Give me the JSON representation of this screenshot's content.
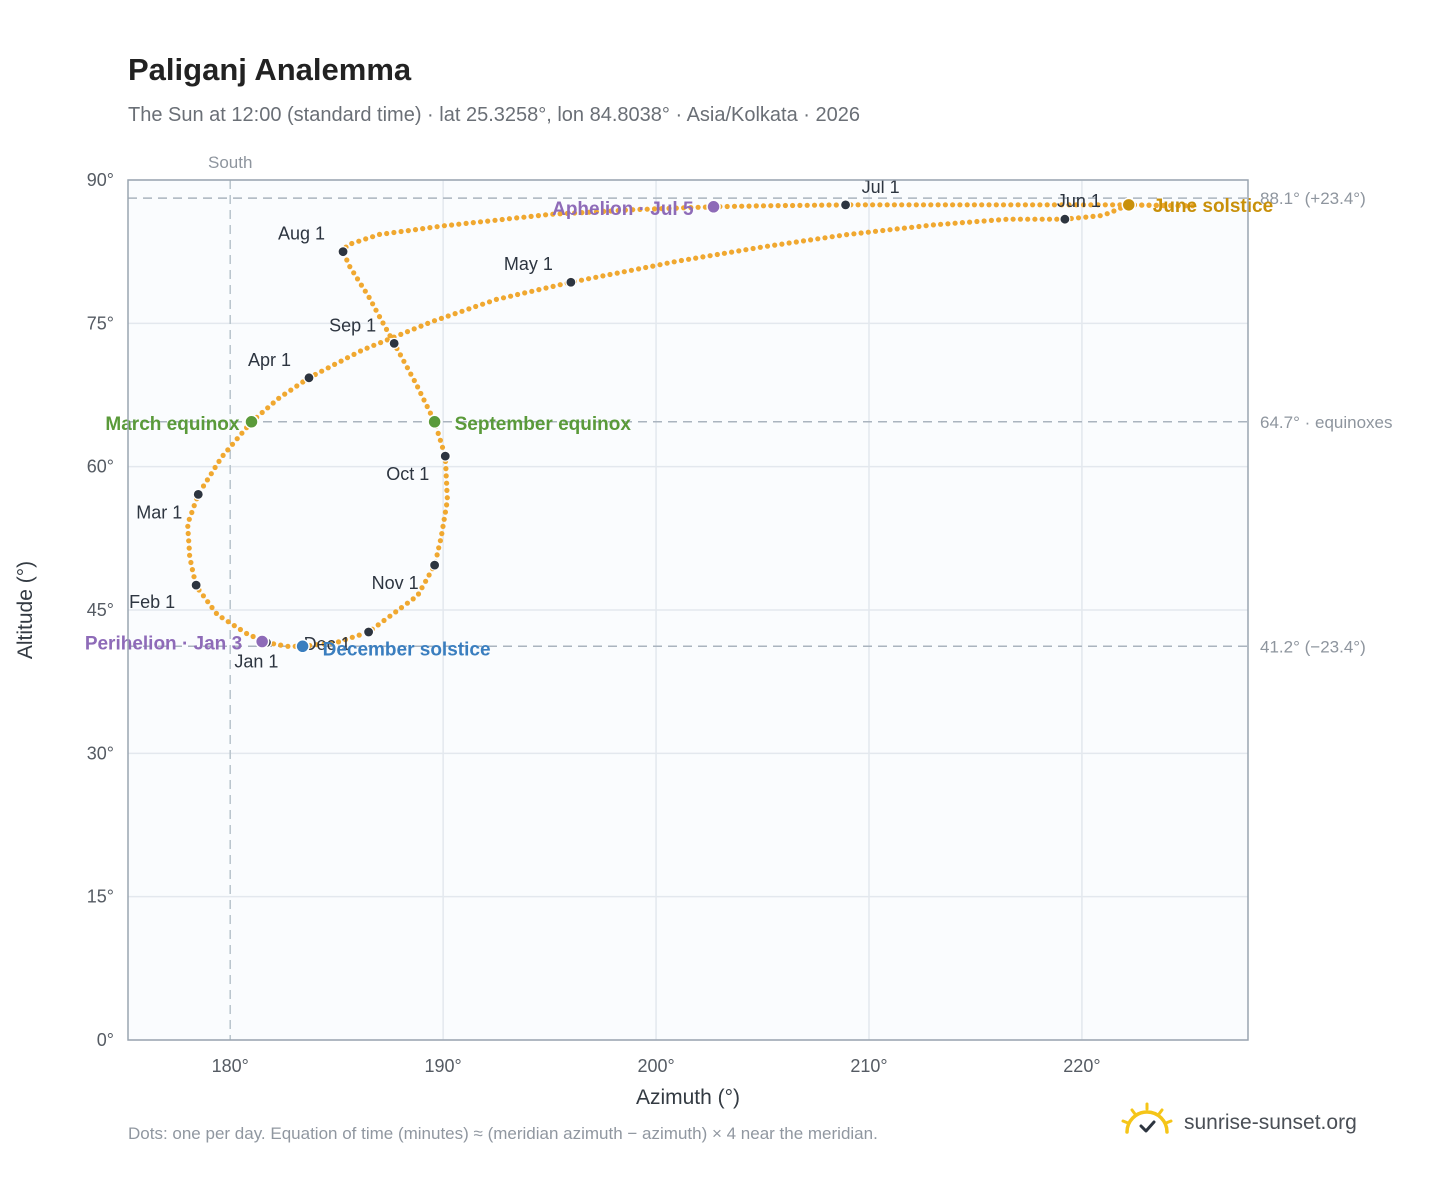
{
  "title": "Paliganj Analemma",
  "subtitle": "The Sun at 12:00 (standard time) · lat 25.3258°, lon 84.8038° · Asia/Kolkata · 2026",
  "footnote": "Dots: one per day. Equation of time (minutes) ≈ (meridian azimuth − azimuth) × 4 near the meridian.",
  "brand": {
    "name": "sunrise-sunset.org",
    "logo_icon": "sun-check-icon"
  },
  "colors": {
    "path": "#f0a830",
    "month_dot": "#2d3540",
    "equinox": "#5a9a3a",
    "june_solstice": "#c8900a",
    "december_solstice": "#3a7ebf",
    "apsis": "#8e6bb8",
    "plot_bg": "#fafcfe",
    "grid": "#e3e8ee",
    "axis": "#9aa5b1",
    "ref_line": "#aab4bf"
  },
  "chart_data": {
    "type": "scatter",
    "xlabel": "Azimuth (°)",
    "ylabel": "Altitude (°)",
    "xlim": [
      175.2,
      227.8
    ],
    "ylim": [
      0,
      90
    ],
    "x_ticks": [
      180,
      190,
      200,
      210,
      220
    ],
    "y_ticks": [
      0,
      15,
      30,
      45,
      60,
      75,
      90
    ],
    "x_tick_labels": [
      "180°",
      "190°",
      "200°",
      "210°",
      "220°"
    ],
    "y_tick_labels": [
      "0°",
      "15°",
      "30°",
      "45°",
      "60°",
      "75°",
      "90°"
    ],
    "grid": true,
    "meridian": {
      "azimuth": 180,
      "label": "South"
    },
    "reference_lines": [
      {
        "altitude": 88.1,
        "label": "88.1° (+23.4°)"
      },
      {
        "altitude": 64.7,
        "label": "64.7° · equinoxes"
      },
      {
        "altitude": 41.2,
        "label": "41.2° (−23.4°)"
      }
    ],
    "path_keypoints": [
      [
        181.7,
        41.6
      ],
      [
        180.8,
        42.5
      ],
      [
        179.4,
        44.5
      ],
      [
        178.4,
        47.5
      ],
      [
        178.1,
        50.5
      ],
      [
        178.0,
        54.0
      ],
      [
        178.5,
        57.1
      ],
      [
        179.6,
        61.0
      ],
      [
        181.0,
        64.7
      ],
      [
        182.3,
        67.2
      ],
      [
        183.7,
        69.3
      ],
      [
        186.2,
        72.2
      ],
      [
        189.5,
        75.2
      ],
      [
        192.5,
        77.5
      ],
      [
        196.0,
        79.3
      ],
      [
        201.0,
        81.5
      ],
      [
        205.0,
        83.0
      ],
      [
        209.0,
        84.3
      ],
      [
        213.0,
        85.3
      ],
      [
        216.5,
        85.9
      ],
      [
        219.2,
        85.9
      ],
      [
        221.0,
        86.3
      ],
      [
        222.2,
        87.4
      ],
      [
        224.0,
        87.3
      ],
      [
        225.2,
        87.3
      ],
      [
        222.5,
        87.4
      ],
      [
        218.0,
        87.4
      ],
      [
        214.0,
        87.4
      ],
      [
        208.9,
        87.4
      ],
      [
        205.0,
        87.3
      ],
      [
        202.7,
        87.2
      ],
      [
        199.0,
        86.9
      ],
      [
        195.0,
        86.4
      ],
      [
        190.0,
        85.2
      ],
      [
        187.0,
        84.3
      ],
      [
        185.5,
        83.2
      ],
      [
        185.3,
        82.5
      ],
      [
        185.6,
        81.0
      ],
      [
        186.5,
        77.8
      ],
      [
        187.7,
        72.9
      ],
      [
        188.7,
        68.8
      ],
      [
        189.6,
        64.7
      ],
      [
        190.1,
        61.1
      ],
      [
        190.2,
        56.5
      ],
      [
        189.9,
        52.5
      ],
      [
        189.6,
        49.7
      ],
      [
        188.8,
        46.5
      ],
      [
        186.5,
        42.7
      ],
      [
        185.0,
        41.6
      ],
      [
        183.4,
        41.2
      ],
      [
        182.7,
        41.2
      ],
      [
        181.7,
        41.6
      ]
    ],
    "month_points": [
      {
        "label": "Jan 1",
        "az": 181.7,
        "alt": 41.6
      },
      {
        "label": "Feb 1",
        "az": 178.4,
        "alt": 47.6
      },
      {
        "label": "Mar 1",
        "az": 178.5,
        "alt": 57.1
      },
      {
        "label": "Apr 1",
        "az": 183.7,
        "alt": 69.3
      },
      {
        "label": "May 1",
        "az": 196.0,
        "alt": 79.3
      },
      {
        "label": "Jun 1",
        "az": 219.2,
        "alt": 85.9
      },
      {
        "label": "Jul 1",
        "az": 208.9,
        "alt": 87.4
      },
      {
        "label": "Aug 1",
        "az": 185.3,
        "alt": 82.5
      },
      {
        "label": "Sep 1",
        "az": 187.7,
        "alt": 72.9
      },
      {
        "label": "Oct 1",
        "az": 190.1,
        "alt": 61.1
      },
      {
        "label": "Nov 1",
        "az": 189.6,
        "alt": 49.7
      },
      {
        "label": "Dec 1",
        "az": 186.5,
        "alt": 42.7
      }
    ],
    "special_points": [
      {
        "label": "March equinox",
        "az": 181.0,
        "alt": 64.7,
        "kind": "equinox"
      },
      {
        "label": "September equinox",
        "az": 189.6,
        "alt": 64.7,
        "kind": "equinox"
      },
      {
        "label": "June solstice",
        "az": 222.2,
        "alt": 87.4,
        "kind": "june_solstice"
      },
      {
        "label": "December solstice",
        "az": 183.4,
        "alt": 41.2,
        "kind": "december_solstice"
      },
      {
        "label": "Perihelion · Jan 3",
        "az": 181.5,
        "alt": 41.7,
        "kind": "apsis"
      },
      {
        "label": "Aphelion · Jul 5",
        "az": 202.7,
        "alt": 87.2,
        "kind": "apsis"
      }
    ]
  }
}
